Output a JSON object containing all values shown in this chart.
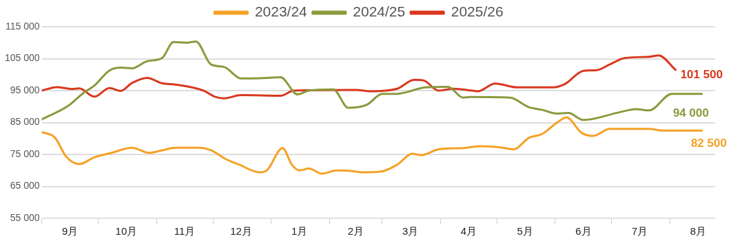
{
  "chart_data": {
    "type": "line",
    "xlim": [
      "2025-09-01",
      "2026-08-25"
    ],
    "xticks": [
      {
        "value": "2025-09-01",
        "label": null
      },
      {
        "value": "2025-09-16",
        "label": "9月"
      },
      {
        "value": "2025-10-01",
        "label": null
      },
      {
        "value": "2025-10-16",
        "label": "10月"
      },
      {
        "value": "2025-11-01",
        "label": null
      },
      {
        "value": "2025-11-16",
        "label": "11月"
      },
      {
        "value": "2025-12-01",
        "label": null
      },
      {
        "value": "2025-12-16",
        "label": "12月"
      },
      {
        "value": "2026-01-01",
        "label": null
      },
      {
        "value": "2026-01-16",
        "label": "1月"
      },
      {
        "value": "2026-02-01",
        "label": null
      },
      {
        "value": "2026-02-15",
        "label": "2月"
      },
      {
        "value": "2026-03-01",
        "label": null
      },
      {
        "value": "2026-03-16",
        "label": "3月"
      },
      {
        "value": "2026-04-01",
        "label": null
      },
      {
        "value": "2026-04-16",
        "label": "4月"
      },
      {
        "value": "2026-05-01",
        "label": null
      },
      {
        "value": "2026-05-16",
        "label": "5月"
      },
      {
        "value": "2026-06-01",
        "label": null
      },
      {
        "value": "2026-06-16",
        "label": "6月"
      },
      {
        "value": "2026-07-01",
        "label": null
      },
      {
        "value": "2026-07-16",
        "label": "7月"
      },
      {
        "value": "2026-08-01",
        "label": null
      },
      {
        "value": "2026-08-16",
        "label": "8月"
      }
    ],
    "ylim": [
      55000,
      115000
    ],
    "yticks": [
      {
        "value": 55000,
        "label": "55 000"
      },
      {
        "value": 65000,
        "label": "65 000"
      },
      {
        "value": 75000,
        "label": "75 000"
      },
      {
        "value": 85000,
        "label": "85 000"
      },
      {
        "value": 95000,
        "label": "95 000"
      },
      {
        "value": 105000,
        "label": "105 000"
      },
      {
        "value": 115000,
        "label": "115 000"
      }
    ],
    "grid": "y",
    "legend": "top",
    "marker": "none",
    "line_style": "solid",
    "series": [
      {
        "name": "2023/24",
        "color": "#f5a126",
        "x": [
          "2025-09-01",
          "2025-09-08",
          "2025-09-14",
          "2025-09-21",
          "2025-09-29",
          "2025-10-08",
          "2025-10-19",
          "2025-10-28",
          "2025-11-04",
          "2025-11-11",
          "2025-11-24",
          "2025-11-30",
          "2025-12-08",
          "2025-12-15",
          "2025-12-26",
          "2025-12-30",
          "2026-01-07",
          "2026-01-12",
          "2026-01-16",
          "2026-01-21",
          "2026-01-28",
          "2026-02-05",
          "2026-02-13",
          "2026-02-18",
          "2026-02-28",
          "2026-03-09",
          "2026-03-17",
          "2026-03-22",
          "2026-03-31",
          "2026-04-13",
          "2026-04-23",
          "2026-05-03",
          "2026-05-10",
          "2026-05-18",
          "2026-05-25",
          "2026-06-02",
          "2026-06-07",
          "2026-06-15",
          "2026-06-21",
          "2026-06-30",
          "2026-07-21",
          "2026-07-28",
          "2026-08-18"
        ],
        "values": [
          82000,
          80300,
          74300,
          72000,
          74100,
          75500,
          77100,
          75500,
          76300,
          77100,
          77100,
          76300,
          73500,
          71800,
          69400,
          70200,
          77000,
          71800,
          70000,
          70600,
          69000,
          70000,
          69800,
          69400,
          69600,
          71800,
          75200,
          74800,
          76600,
          77000,
          77600,
          77200,
          76600,
          80200,
          81400,
          85000,
          86600,
          81800,
          80800,
          83000,
          83000,
          82500,
          82500
        ],
        "value_labels": [
          null,
          null,
          null,
          null,
          null,
          null,
          null,
          null,
          null,
          null,
          null,
          null,
          null,
          null,
          null,
          null,
          null,
          null,
          null,
          null,
          null,
          null,
          null,
          null,
          null,
          null,
          null,
          null,
          null,
          null,
          null,
          null,
          null,
          null,
          null,
          null,
          null,
          null,
          null,
          null,
          null,
          null,
          "82 500"
        ]
      },
      {
        "name": "2024/25",
        "color": "#8a9a3c",
        "x": [
          "2025-09-01",
          "2025-09-15",
          "2025-09-23",
          "2025-09-29",
          "2025-10-07",
          "2025-10-13",
          "2025-10-19",
          "2025-10-27",
          "2025-11-04",
          "2025-11-10",
          "2025-11-17",
          "2025-11-22",
          "2025-11-30",
          "2025-12-07",
          "2025-12-16",
          "2025-12-30",
          "2026-01-06",
          "2026-01-15",
          "2026-01-21",
          "2026-02-03",
          "2026-02-11",
          "2026-02-21",
          "2026-03-01",
          "2026-03-09",
          "2026-03-24",
          "2026-04-05",
          "2026-04-13",
          "2026-04-17",
          "2026-05-08",
          "2026-05-18",
          "2026-05-25",
          "2026-06-02",
          "2026-06-08",
          "2026-06-16",
          "2026-07-05",
          "2026-07-14",
          "2026-07-21",
          "2026-08-02",
          "2026-08-18"
        ],
        "values": [
          86000,
          90200,
          94200,
          96600,
          101300,
          102200,
          102000,
          104200,
          105200,
          110200,
          110000,
          110400,
          103200,
          102400,
          98800,
          99000,
          99200,
          93800,
          95000,
          95400,
          89600,
          90600,
          94000,
          94000,
          96000,
          96200,
          92800,
          93000,
          92800,
          89800,
          89000,
          87800,
          88000,
          85800,
          88200,
          89200,
          88800,
          94000,
          94000
        ],
        "value_labels": [
          null,
          null,
          null,
          null,
          null,
          null,
          null,
          null,
          null,
          null,
          null,
          null,
          null,
          null,
          null,
          null,
          null,
          null,
          null,
          null,
          null,
          null,
          null,
          null,
          null,
          null,
          null,
          null,
          null,
          null,
          null,
          null,
          null,
          null,
          null,
          null,
          null,
          null,
          "94 000"
        ]
      },
      {
        "name": "2025/26",
        "color": "#d9381e",
        "x": [
          "2025-09-01",
          "2025-09-09",
          "2025-09-17",
          "2025-09-21",
          "2025-09-29",
          "2025-10-07",
          "2025-10-13",
          "2025-10-19",
          "2025-10-27",
          "2025-11-04",
          "2025-11-11",
          "2025-11-26",
          "2025-12-02",
          "2025-12-07",
          "2025-12-16",
          "2026-01-06",
          "2026-01-13",
          "2026-02-15",
          "2026-02-23",
          "2026-03-09",
          "2026-03-18",
          "2026-03-23",
          "2026-03-31",
          "2026-04-08",
          "2026-04-18",
          "2026-04-21",
          "2026-04-30",
          "2026-05-12",
          "2026-05-31",
          "2026-06-06",
          "2026-06-16",
          "2026-06-23",
          "2026-06-30",
          "2026-07-08",
          "2026-07-21",
          "2026-07-26",
          "2026-08-04"
        ],
        "values": [
          95000,
          96100,
          95500,
          95700,
          93100,
          95800,
          94900,
          97400,
          99000,
          97300,
          96900,
          95000,
          93100,
          92600,
          93600,
          93400,
          95000,
          95200,
          94800,
          95600,
          98400,
          98200,
          95000,
          95600,
          95000,
          94800,
          97200,
          96000,
          96000,
          97000,
          101200,
          101400,
          103200,
          105200,
          105600,
          106000,
          101500
        ],
        "value_labels": [
          null,
          null,
          null,
          null,
          null,
          null,
          null,
          null,
          null,
          null,
          null,
          null,
          null,
          null,
          null,
          null,
          null,
          null,
          null,
          null,
          null,
          null,
          null,
          null,
          null,
          null,
          null,
          null,
          null,
          null,
          null,
          null,
          null,
          null,
          null,
          null,
          "101 500"
        ]
      }
    ]
  }
}
